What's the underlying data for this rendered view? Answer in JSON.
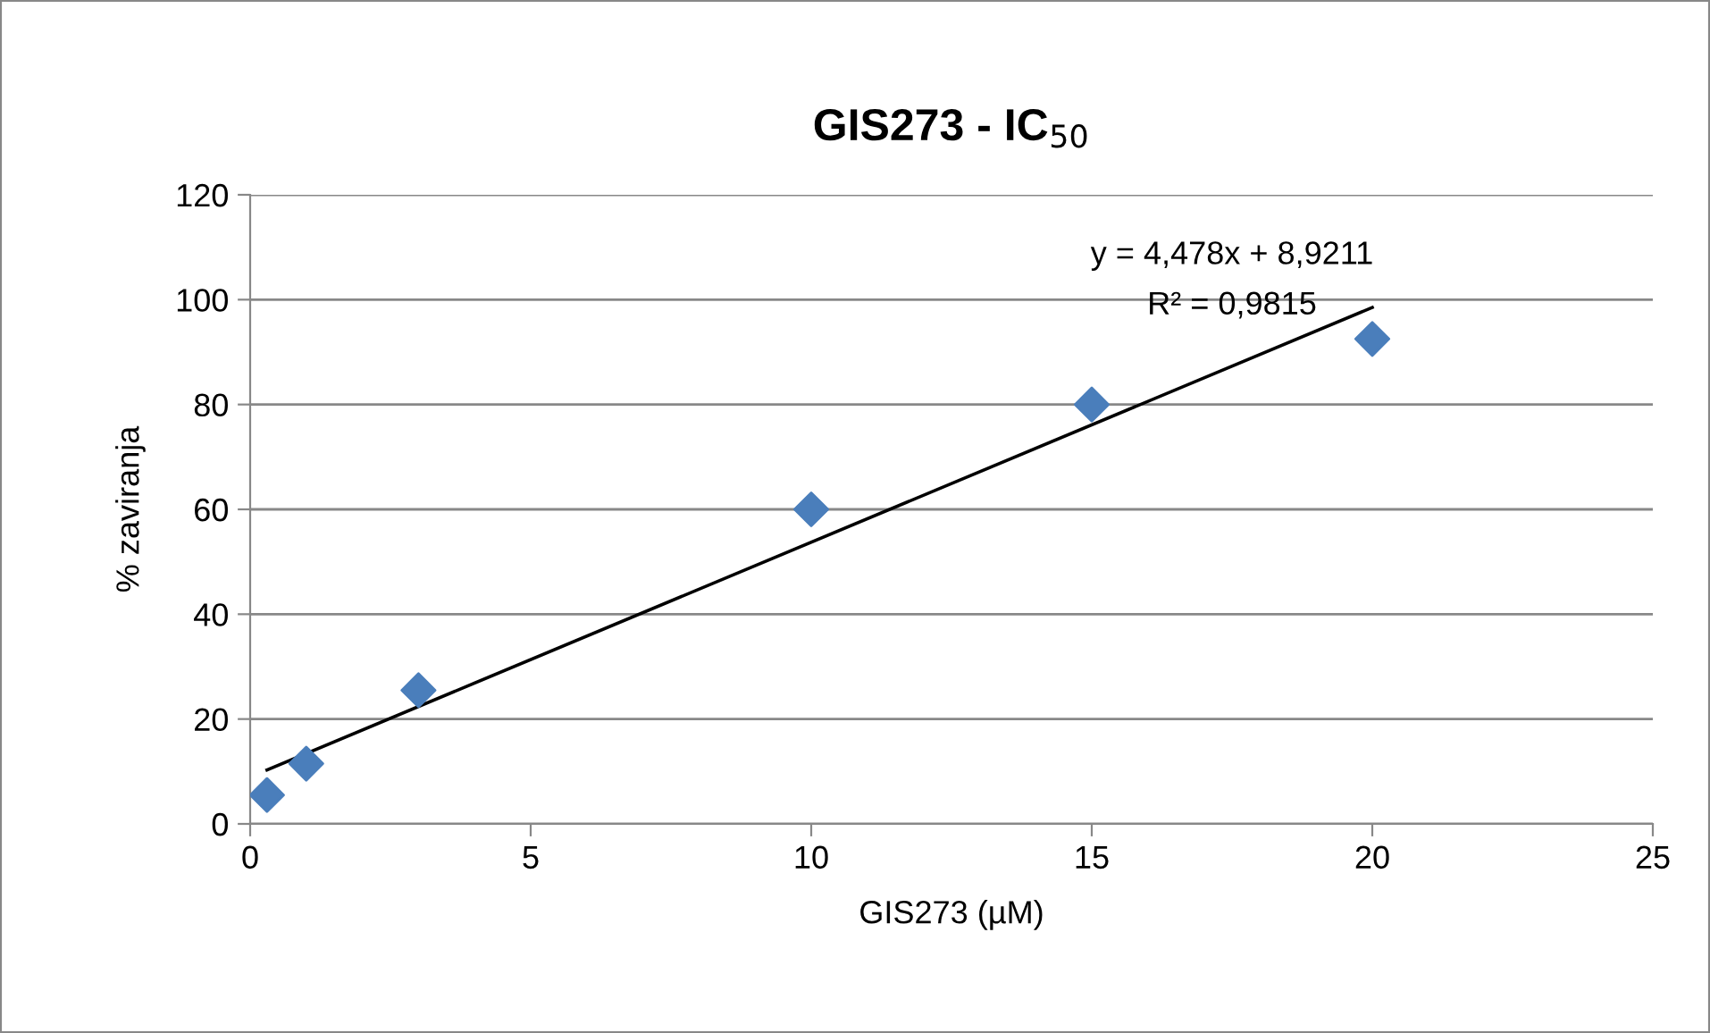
{
  "chart_data": {
    "type": "scatter",
    "title": "GIS273 - IC$_{50}$",
    "xlabel": "GIS273 (µM)",
    "ylabel": "% zaviranja",
    "series": [
      {
        "color": "#4a7ebb",
        "marker": "diamond",
        "x": [
          0.3,
          1,
          3,
          10,
          15,
          20
        ],
        "values": [
          5.5,
          11.5,
          25.5,
          60,
          80,
          92.5
        ]
      },
      {
        "type": "line",
        "color": "#000000",
        "marker": "none",
        "line_style": "solid",
        "x": [
          0.3,
          20
        ],
        "values": [
          10.3,
          98.5
        ]
      }
    ],
    "annotations": [
      "y = 4,478x + 8,9211",
      "R² = 0,9815"
    ],
    "xlim": [
      0,
      25
    ],
    "xticks": [
      0,
      5,
      10,
      15,
      20,
      25
    ],
    "ylim": [
      0,
      120
    ],
    "yticks": [
      0,
      20,
      40,
      60,
      80,
      100,
      120
    ],
    "grid": "y",
    "legend": false
  }
}
